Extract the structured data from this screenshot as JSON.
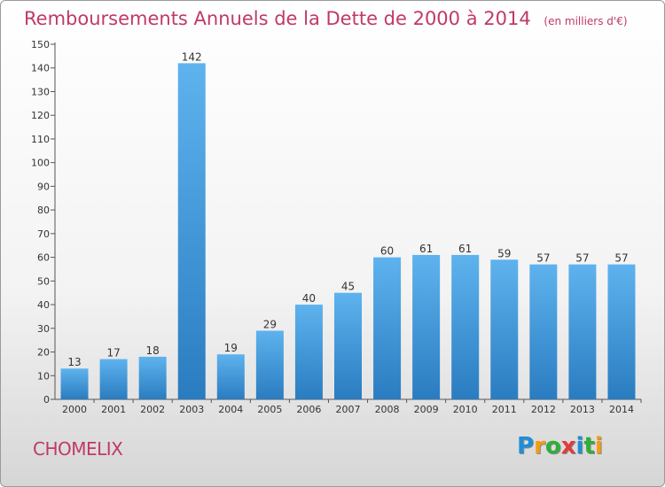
{
  "chart_data": {
    "type": "bar",
    "title": "Remboursements Annuels de la Dette de 2000 à 2014",
    "subtitle": "(en milliers d'€)",
    "categories": [
      "2000",
      "2001",
      "2002",
      "2003",
      "2004",
      "2005",
      "2006",
      "2007",
      "2008",
      "2009",
      "2010",
      "2011",
      "2012",
      "2013",
      "2014"
    ],
    "values": [
      13,
      17,
      18,
      142,
      19,
      29,
      40,
      45,
      60,
      61,
      61,
      59,
      57,
      57,
      57
    ],
    "ylim": [
      0,
      150
    ],
    "yticks": [
      0,
      10,
      20,
      30,
      40,
      50,
      60,
      70,
      80,
      90,
      100,
      110,
      120,
      130,
      140,
      150
    ],
    "grid": false,
    "xlabel": "",
    "ylabel": ""
  },
  "commune": "CHOMELIX",
  "logo": {
    "letters": [
      "P",
      "r",
      "o",
      "x",
      "i",
      "t",
      "i"
    ],
    "colors": [
      "#1e8fd6",
      "#f39c12",
      "#2fae3a",
      "#e23b3b",
      "#1e8fd6",
      "#2fae3a",
      "#f39c12"
    ]
  },
  "colors": {
    "bar_light": "#5eb3ee",
    "bar_dark": "#2a7cc0",
    "title": "#c03a64"
  }
}
